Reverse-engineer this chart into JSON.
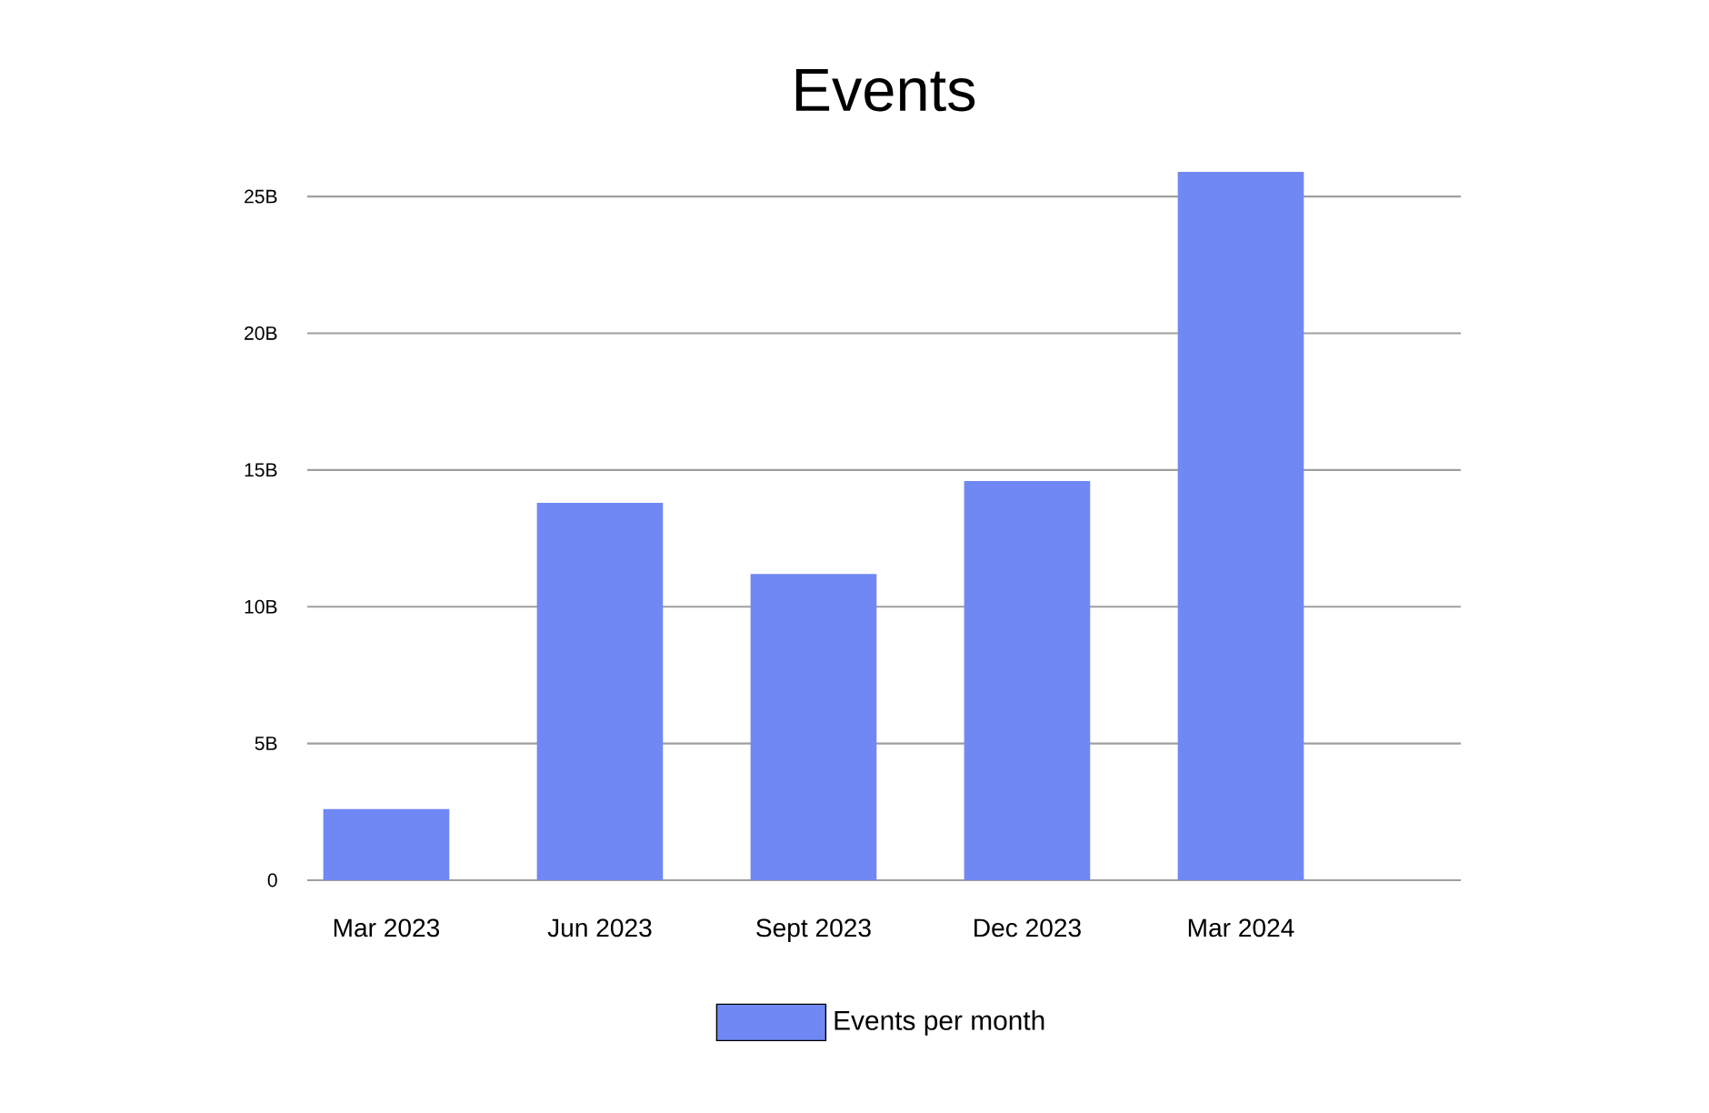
{
  "chart_data": {
    "type": "bar",
    "title": "Events",
    "categories": [
      "Mar 2023",
      "Jun 2023",
      "Sept 2023",
      "Dec 2023",
      "Mar 2024"
    ],
    "series": [
      {
        "name": "Events per month",
        "color": "#7088f4",
        "values": [
          2.6,
          13.8,
          11.2,
          14.6,
          25.9
        ]
      }
    ],
    "ylim": [
      0,
      26
    ],
    "yticks": [
      0,
      {
        "value": 5,
        "label": "5B"
      },
      {
        "value": 10,
        "label": "10B"
      },
      {
        "value": 15,
        "label": "15B"
      },
      {
        "value": 20,
        "label": "20B"
      },
      {
        "value": 25,
        "label": "25B"
      }
    ],
    "grid": "y",
    "legend": "bottom"
  }
}
